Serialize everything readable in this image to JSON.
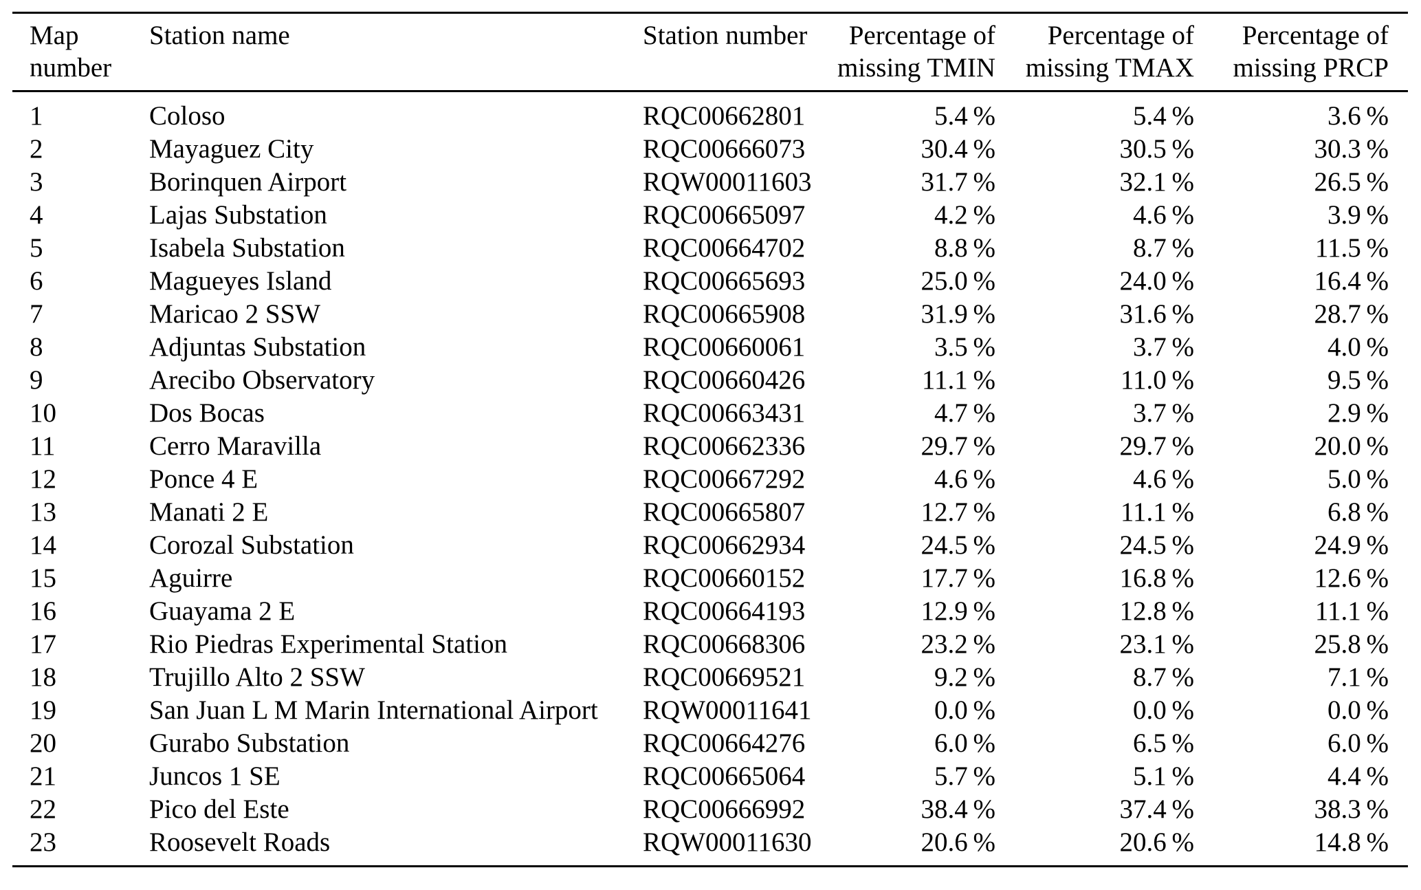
{
  "table": {
    "columns": [
      {
        "id": "map_number",
        "line1": "Map",
        "line2": "number",
        "align": "left"
      },
      {
        "id": "station_name",
        "line1": "Station name",
        "line2": "",
        "align": "left"
      },
      {
        "id": "station_number",
        "line1": "Station number",
        "line2": "",
        "align": "left"
      },
      {
        "id": "tmin",
        "line1": "Percentage of",
        "line2": "missing TMIN",
        "align": "right"
      },
      {
        "id": "tmax",
        "line1": "Percentage of",
        "line2": "missing TMAX",
        "align": "right"
      },
      {
        "id": "prcp",
        "line1": "Percentage of",
        "line2": "missing PRCP",
        "align": "right"
      }
    ],
    "rows": [
      {
        "map_number": "1",
        "station_name": "Coloso",
        "station_number": "RQC00662801",
        "tmin": "5.4 %",
        "tmax": "5.4 %",
        "prcp": "3.6 %"
      },
      {
        "map_number": "2",
        "station_name": "Mayaguez City",
        "station_number": "RQC00666073",
        "tmin": "30.4 %",
        "tmax": "30.5 %",
        "prcp": "30.3 %"
      },
      {
        "map_number": "3",
        "station_name": "Borinquen Airport",
        "station_number": "RQW00011603",
        "tmin": "31.7 %",
        "tmax": "32.1 %",
        "prcp": "26.5 %"
      },
      {
        "map_number": "4",
        "station_name": "Lajas Substation",
        "station_number": "RQC00665097",
        "tmin": "4.2 %",
        "tmax": "4.6 %",
        "prcp": "3.9 %"
      },
      {
        "map_number": "5",
        "station_name": "Isabela Substation",
        "station_number": "RQC00664702",
        "tmin": "8.8 %",
        "tmax": "8.7 %",
        "prcp": "11.5 %"
      },
      {
        "map_number": "6",
        "station_name": "Magueyes Island",
        "station_number": "RQC00665693",
        "tmin": "25.0 %",
        "tmax": "24.0 %",
        "prcp": "16.4 %"
      },
      {
        "map_number": "7",
        "station_name": "Maricao 2 SSW",
        "station_number": "RQC00665908",
        "tmin": "31.9 %",
        "tmax": "31.6 %",
        "prcp": "28.7 %"
      },
      {
        "map_number": "8",
        "station_name": "Adjuntas Substation",
        "station_number": "RQC00660061",
        "tmin": "3.5 %",
        "tmax": "3.7 %",
        "prcp": "4.0 %"
      },
      {
        "map_number": "9",
        "station_name": "Arecibo Observatory",
        "station_number": "RQC00660426",
        "tmin": "11.1 %",
        "tmax": "11.0 %",
        "prcp": "9.5 %"
      },
      {
        "map_number": "10",
        "station_name": "Dos Bocas",
        "station_number": "RQC00663431",
        "tmin": "4.7 %",
        "tmax": "3.7 %",
        "prcp": "2.9 %"
      },
      {
        "map_number": "11",
        "station_name": "Cerro Maravilla",
        "station_number": "RQC00662336",
        "tmin": "29.7 %",
        "tmax": "29.7 %",
        "prcp": "20.0 %"
      },
      {
        "map_number": "12",
        "station_name": "Ponce 4 E",
        "station_number": "RQC00667292",
        "tmin": "4.6 %",
        "tmax": "4.6 %",
        "prcp": "5.0 %"
      },
      {
        "map_number": "13",
        "station_name": "Manati 2 E",
        "station_number": "RQC00665807",
        "tmin": "12.7 %",
        "tmax": "11.1 %",
        "prcp": "6.8 %"
      },
      {
        "map_number": "14",
        "station_name": "Corozal Substation",
        "station_number": "RQC00662934",
        "tmin": "24.5 %",
        "tmax": "24.5 %",
        "prcp": "24.9 %"
      },
      {
        "map_number": "15",
        "station_name": "Aguirre",
        "station_number": "RQC00660152",
        "tmin": "17.7 %",
        "tmax": "16.8 %",
        "prcp": "12.6 %"
      },
      {
        "map_number": "16",
        "station_name": "Guayama 2 E",
        "station_number": "RQC00664193",
        "tmin": "12.9 %",
        "tmax": "12.8 %",
        "prcp": "11.1 %"
      },
      {
        "map_number": "17",
        "station_name": "Rio Piedras Experimental Station",
        "station_number": "RQC00668306",
        "tmin": "23.2 %",
        "tmax": "23.1 %",
        "prcp": "25.8 %"
      },
      {
        "map_number": "18",
        "station_name": "Trujillo Alto 2 SSW",
        "station_number": "RQC00669521",
        "tmin": "9.2 %",
        "tmax": "8.7 %",
        "prcp": "7.1 %"
      },
      {
        "map_number": "19",
        "station_name": "San Juan L M Marin International Airport",
        "station_number": "RQW00011641",
        "tmin": "0.0 %",
        "tmax": "0.0 %",
        "prcp": "0.0 %"
      },
      {
        "map_number": "20",
        "station_name": "Gurabo Substation",
        "station_number": "RQC00664276",
        "tmin": "6.0 %",
        "tmax": "6.5 %",
        "prcp": "6.0 %"
      },
      {
        "map_number": "21",
        "station_name": "Juncos 1 SE",
        "station_number": "RQC00665064",
        "tmin": "5.7 %",
        "tmax": "5.1 %",
        "prcp": "4.4 %"
      },
      {
        "map_number": "22",
        "station_name": "Pico del Este",
        "station_number": "RQC00666992",
        "tmin": "38.4 %",
        "tmax": "37.4 %",
        "prcp": "38.3 %"
      },
      {
        "map_number": "23",
        "station_name": "Roosevelt Roads",
        "station_number": "RQW00011630",
        "tmin": "20.6 %",
        "tmax": "20.6 %",
        "prcp": "14.8 %"
      }
    ]
  }
}
